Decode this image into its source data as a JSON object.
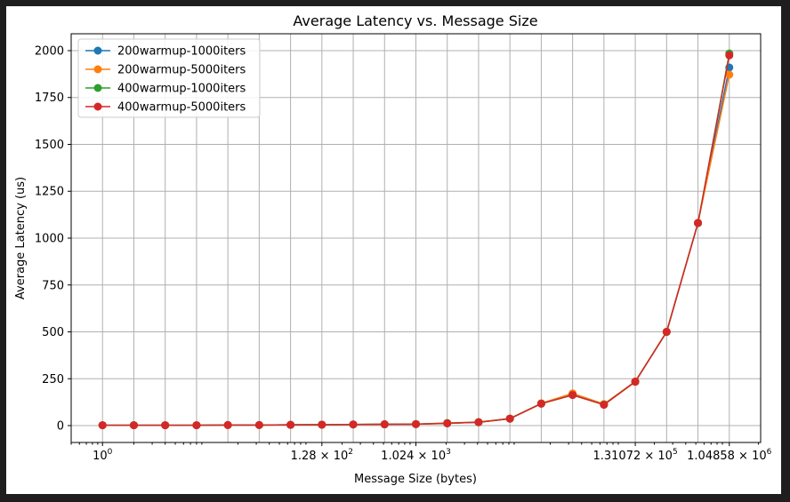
{
  "chart_data": {
    "type": "line",
    "title": "Average Latency vs. Message Size",
    "xlabel": "Message Size (bytes)",
    "ylabel": "Average Latency (us)",
    "x_scale": "log2",
    "x": [
      1,
      2,
      4,
      8,
      16,
      32,
      64,
      128,
      256,
      512,
      1024,
      2048,
      4096,
      8192,
      16384,
      32768,
      65536,
      131072,
      262144,
      524288,
      1048576
    ],
    "x_tick_values": [
      1,
      128,
      1024,
      131072,
      1048576
    ],
    "x_tick_labels": [
      {
        "base": "10",
        "exp": "0",
        "mant": ""
      },
      {
        "base": "10",
        "exp": "2",
        "mant": "1.28"
      },
      {
        "base": "10",
        "exp": "3",
        "mant": "1.024"
      },
      {
        "base": "10",
        "exp": "5",
        "mant": "1.31072"
      },
      {
        "base": "10",
        "exp": "6",
        "mant": "1.04858"
      }
    ],
    "xlim_log2": [
      -1.0,
      21.0
    ],
    "ylim": [
      -90,
      2090
    ],
    "y_ticks": [
      0,
      250,
      500,
      750,
      1000,
      1250,
      1500,
      1750,
      2000
    ],
    "grid": true,
    "legend_position": "upper-left",
    "series": [
      {
        "name": "200warmup-1000iters",
        "color": "#1f77b4",
        "values": [
          2,
          2,
          2,
          2,
          3,
          3,
          4,
          5,
          6,
          7,
          8,
          12,
          18,
          37,
          118,
          165,
          112,
          235,
          500,
          1080,
          1910
        ]
      },
      {
        "name": "200warmup-5000iters",
        "color": "#ff7f0e",
        "values": [
          2,
          2,
          2,
          2,
          3,
          3,
          4,
          5,
          6,
          7,
          8,
          14,
          19,
          38,
          119,
          172,
          115,
          236,
          501,
          1082,
          1872
        ]
      },
      {
        "name": "400warmup-1000iters",
        "color": "#2ca02c",
        "values": [
          2,
          2,
          2,
          2,
          3,
          3,
          4,
          5,
          6,
          7,
          8,
          13,
          18,
          37,
          117,
          163,
          112,
          234,
          499,
          1080,
          1985
        ]
      },
      {
        "name": "400warmup-5000iters",
        "color": "#d62728",
        "values": [
          2,
          2,
          2,
          2,
          3,
          3,
          4,
          5,
          6,
          7,
          8,
          12,
          18,
          37,
          117,
          163,
          111,
          234,
          500,
          1081,
          1975
        ]
      }
    ]
  }
}
